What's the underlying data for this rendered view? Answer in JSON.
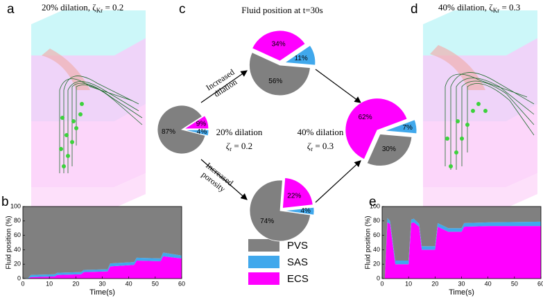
{
  "panel_labels": [
    "a",
    "b",
    "c",
    "d",
    "e"
  ],
  "illustrations": [
    {
      "title": "20% dilation,  ζ",
      "title_sub": "Kr",
      "title_end": " = 0.2"
    },
    {
      "title": "40% dilation,  ζ",
      "title_sub": "Kr",
      "title_end": " = 0.3"
    }
  ],
  "center_title": "Fluid position at t=30s",
  "arrow_labels": [
    [
      "Increased",
      "dilation"
    ],
    [
      "Increased",
      "porosity"
    ]
  ],
  "conditions": [
    {
      "text": "20% dilation",
      "zeta": "ζ",
      "zeta_sub": "r",
      "zeta_end": " = 0.2"
    },
    {
      "text": "40% dilation",
      "zeta": "ζ",
      "zeta_sub": "r",
      "zeta_end": " = 0.3"
    }
  ],
  "legend": [
    {
      "name": "PVS",
      "color": "#808080"
    },
    {
      "name": "SAS",
      "color": "#40a8ec"
    },
    {
      "name": "ECS",
      "color": "#ff00ff"
    }
  ],
  "chart_data": [
    {
      "type": "pie",
      "values": [
        87,
        4,
        9
      ],
      "value_labels": [
        "87%",
        "4%",
        "9%"
      ]
    },
    {
      "type": "pie",
      "values": [
        56,
        11,
        34
      ],
      "value_labels": [
        "56%",
        "11%",
        "34%"
      ]
    },
    {
      "type": "pie",
      "values": [
        74,
        4,
        22
      ],
      "value_labels": [
        "74%",
        "4%",
        "22%"
      ]
    },
    {
      "type": "pie",
      "values": [
        30,
        7,
        62
      ],
      "value_labels": [
        "30%",
        "7%",
        "62%"
      ]
    },
    {
      "type": "area",
      "xlabel": "Time(s)",
      "ylabel": "Fluid position (%)",
      "x": [
        0,
        2,
        3,
        12,
        13,
        22,
        23,
        32,
        33,
        42,
        43,
        52,
        53,
        60
      ],
      "series": [
        {
          "color": "#808080",
          "values": [
            100,
            99,
            95,
            94,
            92,
            91,
            88,
            87,
            79,
            77,
            71,
            72,
            64,
            68
          ]
        },
        {
          "color": "#40a8ec",
          "values": [
            0,
            1,
            3,
            3,
            3,
            3,
            3,
            3,
            4,
            4,
            4,
            4,
            5,
            4
          ]
        },
        {
          "color": "#ff00ff",
          "values": [
            0,
            0,
            2,
            3,
            5,
            6,
            9,
            10,
            17,
            19,
            25,
            24,
            31,
            28
          ]
        }
      ],
      "xlim": [
        0,
        60
      ],
      "ylim": [
        0,
        100
      ],
      "xticks": [
        0,
        10,
        20,
        30,
        40,
        50,
        60
      ],
      "yticks": [
        0,
        20,
        40,
        60,
        80,
        100
      ]
    },
    {
      "type": "area",
      "xlabel": "Time(s)",
      "ylabel": "Fluid position (%)",
      "x": [
        0,
        1,
        2,
        3,
        5,
        10,
        11,
        12,
        14,
        15,
        20,
        21,
        25,
        30,
        31,
        40,
        60
      ],
      "series": [
        {
          "color": "#808080",
          "values": [
            100,
            100,
            16,
            20,
            75,
            75,
            18,
            17,
            24,
            55,
            55,
            23,
            30,
            30,
            23,
            22,
            21
          ]
        },
        {
          "color": "#40a8ec",
          "values": [
            0,
            0,
            6,
            4,
            5,
            5,
            5,
            5,
            4,
            5,
            5,
            5,
            5,
            5,
            5,
            5,
            6
          ]
        },
        {
          "color": "#ff00ff",
          "values": [
            0,
            0,
            78,
            76,
            20,
            20,
            77,
            78,
            72,
            40,
            40,
            72,
            65,
            65,
            72,
            73,
            73
          ]
        }
      ],
      "xlim": [
        0,
        60
      ],
      "ylim": [
        0,
        100
      ],
      "xticks": [
        0,
        10,
        20,
        30,
        40,
        50,
        60
      ],
      "yticks": [
        0,
        20,
        40,
        60,
        80,
        100
      ]
    }
  ]
}
